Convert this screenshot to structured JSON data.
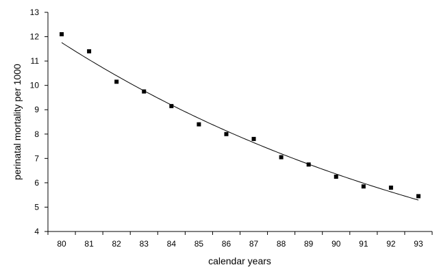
{
  "chart_data": {
    "type": "scatter",
    "title": "",
    "xlabel": "calendar years",
    "ylabel": "perinatal mortality per 1000",
    "categories": [
      "80",
      "81",
      "82",
      "83",
      "84",
      "85",
      "86",
      "87",
      "88",
      "89",
      "90",
      "91",
      "92",
      "93"
    ],
    "ylim": [
      4,
      13
    ],
    "yticks": [
      "4",
      "5",
      "6",
      "7",
      "8",
      "9",
      "10",
      "11",
      "12",
      "13"
    ],
    "grid": false,
    "legend": "none",
    "series": [
      {
        "values": [
          12.1,
          11.4,
          10.15,
          9.75,
          9.15,
          8.4,
          8.0,
          7.8,
          7.05,
          6.75,
          6.25,
          5.85,
          5.8,
          5.45
        ],
        "marker": "square",
        "color": "#000000"
      }
    ],
    "trendline": {
      "type": "exponential",
      "color": "#000000"
    }
  }
}
